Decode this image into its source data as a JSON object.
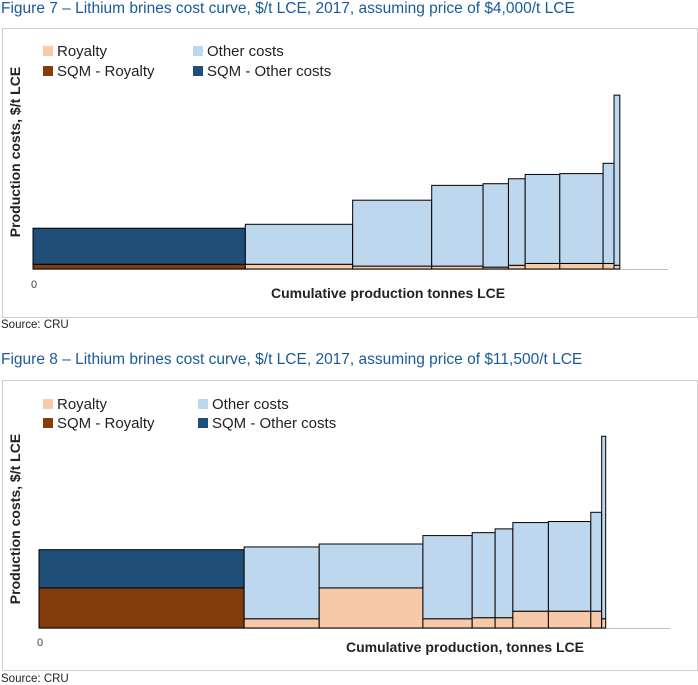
{
  "figures": [
    {
      "title": "Figure 7 – Lithium brines cost curve, $/t LCE, 2017, assuming price of $4,000/t LCE",
      "source": "Source: CRU",
      "chart_data": {
        "type": "bar",
        "subtype": "stacked-variable-width-cost-curve",
        "ylabel": "Production costs, $/t LCE",
        "xlabel": "Cumulative production tonnes LCE",
        "x_origin_label": "0",
        "legend": {
          "placement": "top-left",
          "items": [
            {
              "label": "Royalty",
              "color": "#f7c9a8"
            },
            {
              "label": "Other costs",
              "color": "#bdd7ee"
            },
            {
              "label": "SQM - Royalty",
              "color": "#843c0c"
            },
            {
              "label": "SQM - Other costs",
              "color": "#1f4e79"
            }
          ]
        },
        "grid": false,
        "xlim": [
          0,
          100
        ],
        "ylim": [
          0,
          100
        ],
        "bars": [
          {
            "x0": 0,
            "x1": 36.8,
            "royalty": 2.3,
            "other": 17.5,
            "sqm": true
          },
          {
            "x0": 36.8,
            "x1": 55.4,
            "royalty": 2.3,
            "other": 19.4,
            "sqm": false
          },
          {
            "x0": 55.4,
            "x1": 69.1,
            "royalty": 1.4,
            "other": 32.0,
            "sqm": false
          },
          {
            "x0": 69.1,
            "x1": 78.0,
            "royalty": 1.4,
            "other": 39.2,
            "sqm": false
          },
          {
            "x0": 78.0,
            "x1": 82.4,
            "royalty": 0.9,
            "other": 40.5,
            "sqm": false
          },
          {
            "x0": 82.4,
            "x1": 85.3,
            "royalty": 1.8,
            "other": 42.0,
            "sqm": false
          },
          {
            "x0": 85.3,
            "x1": 91.3,
            "royalty": 2.7,
            "other": 43.2,
            "sqm": false
          },
          {
            "x0": 91.3,
            "x1": 98.8,
            "royalty": 2.7,
            "other": 43.6,
            "sqm": false
          },
          {
            "x0": 98.8,
            "x1": 100.7,
            "royalty": 2.7,
            "other": 48.6,
            "sqm": false
          },
          {
            "x0": 100.7,
            "x1": 101.7,
            "royalty": 1.8,
            "other": 82.6,
            "sqm": false
          }
        ]
      }
    },
    {
      "title": "Figure 8 – Lithium brines cost curve, $/t LCE, 2017, assuming price of $11,500/t LCE",
      "source": "Source: CRU",
      "chart_data": {
        "type": "bar",
        "subtype": "stacked-variable-width-cost-curve",
        "ylabel": "Production costs, $/t LCE",
        "xlabel": "Cumulative production, tonnes LCE",
        "x_origin_label": "0",
        "legend": {
          "placement": "top-left",
          "items": [
            {
              "label": "Royalty",
              "color": "#f7c9a8"
            },
            {
              "label": "Other costs",
              "color": "#bdd7ee"
            },
            {
              "label": "SQM - Royalty",
              "color": "#843c0c"
            },
            {
              "label": "SQM - Other costs",
              "color": "#1f4e79"
            }
          ]
        },
        "grid": false,
        "xlim": [
          0,
          100
        ],
        "ylim": [
          0,
          100
        ],
        "bars": [
          {
            "x0": 0,
            "x1": 35.8,
            "royalty": 19.1,
            "other": 18.2,
            "sqm": true
          },
          {
            "x0": 35.8,
            "x1": 48.9,
            "royalty": 4.4,
            "other": 34.2,
            "sqm": false
          },
          {
            "x0": 48.9,
            "x1": 67.0,
            "royalty": 19.1,
            "other": 20.9,
            "sqm": false
          },
          {
            "x0": 67.0,
            "x1": 75.6,
            "royalty": 4.4,
            "other": 39.6,
            "sqm": false
          },
          {
            "x0": 75.6,
            "x1": 79.6,
            "royalty": 4.9,
            "other": 40.5,
            "sqm": false
          },
          {
            "x0": 79.6,
            "x1": 82.7,
            "royalty": 4.9,
            "other": 42.3,
            "sqm": false
          },
          {
            "x0": 82.7,
            "x1": 88.9,
            "royalty": 8.0,
            "other": 42.2,
            "sqm": false
          },
          {
            "x0": 88.9,
            "x1": 96.3,
            "royalty": 8.0,
            "other": 42.7,
            "sqm": false
          },
          {
            "x0": 96.3,
            "x1": 98.2,
            "royalty": 8.0,
            "other": 47.1,
            "sqm": false
          },
          {
            "x0": 98.2,
            "x1": 98.9,
            "royalty": 4.4,
            "other": 86.9,
            "sqm": false
          }
        ]
      }
    }
  ]
}
